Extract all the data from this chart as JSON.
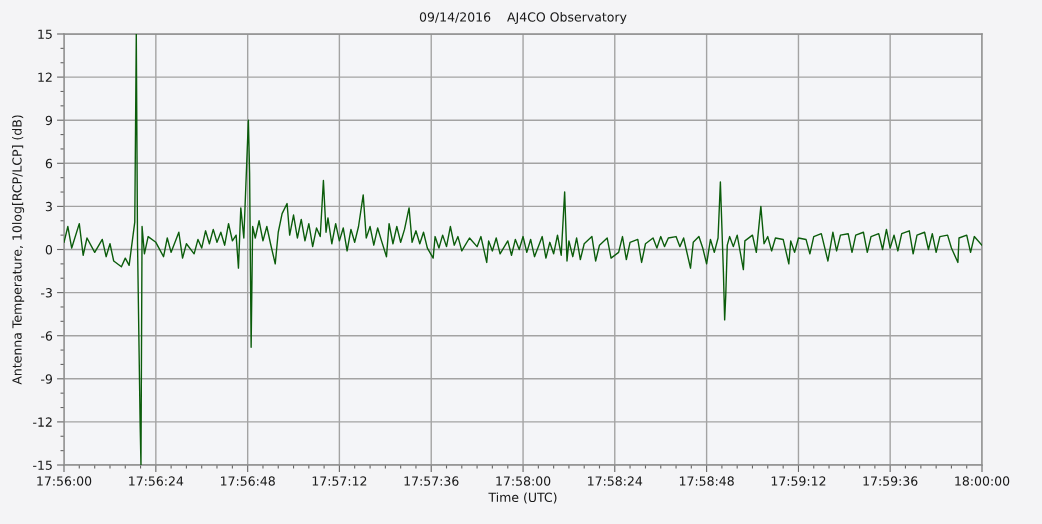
{
  "chart_data": {
    "type": "line",
    "title": "09/14/2016    AJ4CO Observatory",
    "xlabel": "Time (UTC)",
    "ylabel": "Antenna Temperature, 10log[RCP/LCP] (dB)",
    "x": [
      17.93333,
      17.93361,
      17.93389,
      17.93444,
      17.93472,
      17.935,
      17.93556,
      17.93611,
      17.93639,
      17.93667,
      17.93694,
      17.9375,
      17.93778,
      17.93806,
      17.93847,
      17.93858,
      17.93867,
      17.93886,
      17.93892,
      17.939,
      17.93917,
      17.93944,
      17.94,
      17.94056,
      17.94083,
      17.94111,
      17.94167,
      17.94194,
      17.94222,
      17.94278,
      17.94306,
      17.94333,
      17.94361,
      17.94389,
      17.94417,
      17.94444,
      17.94472,
      17.945,
      17.94528,
      17.94556,
      17.94583,
      17.946,
      17.94617,
      17.94639,
      17.94672,
      17.94681,
      17.94692,
      17.94703,
      17.94722,
      17.9475,
      17.94778,
      17.94806,
      17.94833,
      17.94867,
      17.94889,
      17.94917,
      17.94953,
      17.94972,
      17.95,
      17.95028,
      17.95056,
      17.95083,
      17.95111,
      17.95139,
      17.95167,
      17.95194,
      17.95217,
      17.95236,
      17.9525,
      17.95278,
      17.95306,
      17.95333,
      17.95361,
      17.95389,
      17.95417,
      17.95444,
      17.95472,
      17.95506,
      17.95528,
      17.95556,
      17.95583,
      17.95611,
      17.95639,
      17.95675,
      17.95694,
      17.95722,
      17.9575,
      17.95778,
      17.95806,
      17.95839,
      17.95861,
      17.95889,
      17.95917,
      17.95944,
      17.95972,
      17.96014,
      17.96028,
      17.96056,
      17.96083,
      17.96111,
      17.96139,
      17.96167,
      17.96194,
      17.96222,
      17.96278,
      17.96333,
      17.96361,
      17.96403,
      17.96417,
      17.96444,
      17.96472,
      17.965,
      17.96556,
      17.96583,
      17.96611,
      17.96639,
      17.96667,
      17.96694,
      17.96722,
      17.9675,
      17.96806,
      17.96833,
      17.96861,
      17.96889,
      17.96917,
      17.96944,
      17.96969,
      17.96986,
      17.97,
      17.97028,
      17.97056,
      17.97083,
      17.97111,
      17.97167,
      17.97194,
      17.97222,
      17.97278,
      17.97306,
      17.97361,
      17.97389,
      17.97417,
      17.97444,
      17.975,
      17.97528,
      17.97556,
      17.97611,
      17.97639,
      17.97667,
      17.97694,
      17.97722,
      17.97778,
      17.97806,
      17.97833,
      17.97883,
      17.97903,
      17.97944,
      17.97972,
      17.98,
      17.98028,
      17.98056,
      17.98083,
      17.981,
      17.98122,
      17.98131,
      17.98139,
      17.9815,
      17.98167,
      17.98194,
      17.98222,
      17.98267,
      17.98278,
      17.98333,
      17.98361,
      17.98394,
      17.98417,
      17.98444,
      17.98472,
      17.985,
      17.98556,
      17.98597,
      17.98611,
      17.98639,
      17.98667,
      17.98722,
      17.9875,
      17.98778,
      17.98833,
      17.98881,
      17.98917,
      17.98944,
      17.98972,
      17.99028,
      17.99056,
      17.99083,
      17.99139,
      17.99167,
      17.99194,
      17.9925,
      17.99278,
      17.99306,
      17.99333,
      17.99361,
      17.99389,
      17.99417,
      17.99472,
      17.995,
      17.99528,
      17.99583,
      17.99611,
      17.99639,
      17.99667,
      17.99694,
      17.9975,
      17.99778,
      17.99825,
      17.99833,
      17.99889,
      17.99917,
      17.99944,
      18.0
    ],
    "series": [
      {
        "color": "#0b5c0b",
        "values": [
          0.5,
          1.6,
          0.1,
          1.8,
          -0.4,
          0.8,
          -0.2,
          0.7,
          -0.5,
          0.4,
          -0.8,
          -1.2,
          -0.6,
          -1.1,
          1.9,
          15,
          0.4,
          -12.2,
          -15,
          1.6,
          -0.3,
          0.9,
          0.5,
          -0.5,
          0.8,
          -0.2,
          1.2,
          -0.6,
          0.4,
          -0.3,
          0.7,
          0.1,
          1.3,
          0.4,
          1.4,
          0.5,
          1.2,
          0.3,
          1.8,
          0.6,
          1.0,
          -1.3,
          2.9,
          0.8,
          9.0,
          5.3,
          -6.8,
          1.6,
          0.8,
          2.0,
          0.6,
          1.6,
          0.4,
          -1.0,
          1.2,
          2.5,
          3.2,
          1.0,
          2.4,
          0.8,
          2.1,
          0.6,
          1.8,
          0.2,
          1.5,
          0.9,
          4.8,
          1.2,
          2.2,
          0.4,
          1.8,
          0.6,
          1.5,
          -0.1,
          1.4,
          0.5,
          1.6,
          3.8,
          0.8,
          1.6,
          0.3,
          1.5,
          0.6,
          -0.5,
          1.8,
          0.4,
          1.6,
          0.5,
          1.4,
          2.9,
          0.5,
          1.3,
          0.4,
          1.2,
          0.1,
          -0.6,
          0.9,
          0.1,
          1.0,
          0.2,
          1.6,
          0.3,
          0.9,
          -0.1,
          0.8,
          0.2,
          0.9,
          -0.9,
          0.6,
          -0.1,
          0.8,
          -0.3,
          0.6,
          -0.4,
          0.7,
          0.0,
          0.9,
          -0.2,
          0.7,
          -0.5,
          0.9,
          -0.6,
          0.5,
          -0.3,
          1.0,
          -0.4,
          4.0,
          -0.8,
          0.6,
          -0.5,
          0.8,
          -0.7,
          0.4,
          0.9,
          -0.8,
          0.3,
          0.8,
          -0.6,
          -0.2,
          0.9,
          -0.7,
          0.5,
          0.7,
          -0.9,
          0.4,
          0.8,
          0.1,
          0.9,
          0.2,
          0.8,
          0.9,
          0.2,
          0.8,
          -1.3,
          0.5,
          0.9,
          0.1,
          -1.0,
          0.7,
          -0.2,
          0.8,
          4.7,
          -1.6,
          -4.9,
          -3.2,
          0.3,
          0.9,
          0.2,
          1.0,
          -1.4,
          0.6,
          1.0,
          -0.2,
          3.0,
          0.4,
          0.9,
          -0.1,
          0.8,
          0.7,
          -1.0,
          0.6,
          -0.2,
          0.8,
          0.7,
          -0.3,
          0.9,
          1.1,
          -0.8,
          1.2,
          -0.1,
          1.0,
          1.1,
          -0.2,
          1.0,
          1.2,
          -0.2,
          0.9,
          1.1,
          0.0,
          1.4,
          0.1,
          1.0,
          -0.1,
          1.1,
          1.3,
          -0.3,
          1.0,
          1.2,
          0.0,
          1.1,
          -0.2,
          0.9,
          1.0,
          0.1,
          -0.9,
          0.8,
          1.0,
          -0.2,
          0.9,
          0.3
        ]
      }
    ],
    "xlim": [
      17.93333,
      18.0
    ],
    "xticks": [
      {
        "value": 17.93333,
        "label": "17:56:00"
      },
      {
        "value": 17.93444,
        "label": null
      },
      {
        "value": 17.93556,
        "label": null
      },
      {
        "value": 17.93667,
        "label": null
      },
      {
        "value": 17.93778,
        "label": null
      },
      {
        "value": 17.93889,
        "label": null
      },
      {
        "value": 17.94,
        "label": "17:56:24"
      },
      {
        "value": 17.94111,
        "label": null
      },
      {
        "value": 17.94222,
        "label": null
      },
      {
        "value": 17.94333,
        "label": null
      },
      {
        "value": 17.94444,
        "label": null
      },
      {
        "value": 17.94556,
        "label": null
      },
      {
        "value": 17.94667,
        "label": "17:56:48"
      },
      {
        "value": 17.94778,
        "label": null
      },
      {
        "value": 17.94889,
        "label": null
      },
      {
        "value": 17.95,
        "label": null
      },
      {
        "value": 17.95111,
        "label": null
      },
      {
        "value": 17.95222,
        "label": null
      },
      {
        "value": 17.95333,
        "label": "17:57:12"
      },
      {
        "value": 17.95444,
        "label": null
      },
      {
        "value": 17.95556,
        "label": null
      },
      {
        "value": 17.95667,
        "label": null
      },
      {
        "value": 17.95778,
        "label": null
      },
      {
        "value": 17.95889,
        "label": null
      },
      {
        "value": 17.96,
        "label": "17:57:36"
      },
      {
        "value": 17.96111,
        "label": null
      },
      {
        "value": 17.96222,
        "label": null
      },
      {
        "value": 17.96333,
        "label": null
      },
      {
        "value": 17.96444,
        "label": null
      },
      {
        "value": 17.96556,
        "label": null
      },
      {
        "value": 17.96667,
        "label": "17:58:00"
      },
      {
        "value": 17.96778,
        "label": null
      },
      {
        "value": 17.96889,
        "label": null
      },
      {
        "value": 17.97,
        "label": null
      },
      {
        "value": 17.97111,
        "label": null
      },
      {
        "value": 17.97222,
        "label": null
      },
      {
        "value": 17.97333,
        "label": "17:58:24"
      },
      {
        "value": 17.97444,
        "label": null
      },
      {
        "value": 17.97556,
        "label": null
      },
      {
        "value": 17.97667,
        "label": null
      },
      {
        "value": 17.97778,
        "label": null
      },
      {
        "value": 17.97889,
        "label": null
      },
      {
        "value": 17.98,
        "label": "17:58:48"
      },
      {
        "value": 17.98111,
        "label": null
      },
      {
        "value": 17.98222,
        "label": null
      },
      {
        "value": 17.98333,
        "label": null
      },
      {
        "value": 17.98444,
        "label": null
      },
      {
        "value": 17.98556,
        "label": null
      },
      {
        "value": 17.98667,
        "label": "17:59:12"
      },
      {
        "value": 17.98778,
        "label": null
      },
      {
        "value": 17.98889,
        "label": null
      },
      {
        "value": 17.99,
        "label": null
      },
      {
        "value": 17.99111,
        "label": null
      },
      {
        "value": 17.99222,
        "label": null
      },
      {
        "value": 17.99333,
        "label": "17:59:36"
      },
      {
        "value": 17.99444,
        "label": null
      },
      {
        "value": 17.99556,
        "label": null
      },
      {
        "value": 17.99667,
        "label": null
      },
      {
        "value": 17.99778,
        "label": null
      },
      {
        "value": 17.99889,
        "label": null
      },
      {
        "value": 18.0,
        "label": "18:00:00"
      }
    ],
    "ylim": [
      -15,
      15
    ],
    "yticks": [
      -15,
      {
        "value": -14,
        "label": null
      },
      {
        "value": -13,
        "label": null
      },
      -12,
      {
        "value": -11,
        "label": null
      },
      {
        "value": -10,
        "label": null
      },
      -9,
      {
        "value": -8,
        "label": null
      },
      {
        "value": -7,
        "label": null
      },
      -6,
      {
        "value": -5,
        "label": null
      },
      {
        "value": -4,
        "label": null
      },
      -3,
      {
        "value": -2,
        "label": null
      },
      {
        "value": -1,
        "label": null
      },
      0,
      {
        "value": 1,
        "label": null
      },
      {
        "value": 2,
        "label": null
      },
      3,
      {
        "value": 4,
        "label": null
      },
      {
        "value": 5,
        "label": null
      },
      6,
      {
        "value": 7,
        "label": null
      },
      {
        "value": 8,
        "label": null
      },
      9,
      {
        "value": 10,
        "label": null
      },
      {
        "value": 11,
        "label": null
      },
      12,
      {
        "value": 13,
        "label": null
      },
      {
        "value": 14,
        "label": null
      },
      15
    ],
    "grid": true,
    "line_style": "solid"
  }
}
